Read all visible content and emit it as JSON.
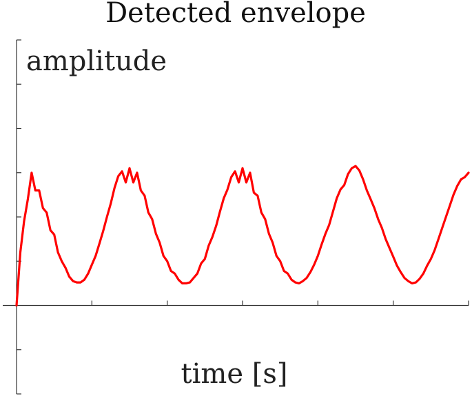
{
  "chart_data": {
    "type": "line",
    "title": "Detected envelope",
    "xlabel": "time [s]",
    "ylabel": "amplitude",
    "xlim": [
      0,
      6
    ],
    "ylim": [
      -2,
      6
    ],
    "x_ticks": [
      0,
      1,
      2,
      3,
      4,
      5,
      6
    ],
    "y_ticks": [
      -2,
      -1,
      0,
      1,
      2,
      3,
      4,
      5,
      6
    ],
    "tick_labels_shown": false,
    "grid": false,
    "colors": {
      "series": "#ff0000"
    },
    "series": [
      {
        "x": [
          0,
          0.05,
          0.1,
          0.15,
          0.2,
          0.25,
          0.3,
          0.35,
          0.4,
          0.45,
          0.5,
          0.55,
          0.6,
          0.65,
          0.7,
          0.75,
          0.8,
          0.85,
          0.9,
          0.95,
          1.0,
          1.05,
          1.1,
          1.15,
          1.2,
          1.25,
          1.3,
          1.35,
          1.4,
          1.45,
          1.5,
          1.55,
          1.6,
          1.65,
          1.7,
          1.75,
          1.8,
          1.85,
          1.9,
          1.95,
          2.0,
          2.05,
          2.1,
          2.15,
          2.2,
          2.25,
          2.3,
          2.35,
          2.4,
          2.45,
          2.5,
          2.55,
          2.6,
          2.65,
          2.7,
          2.75,
          2.8,
          2.85,
          2.9,
          2.95,
          3.0,
          3.05,
          3.1,
          3.15,
          3.2,
          3.25,
          3.3,
          3.35,
          3.4,
          3.45,
          3.5,
          3.55,
          3.6,
          3.65,
          3.7,
          3.75,
          3.8,
          3.85,
          3.9,
          3.95,
          4.0,
          4.05,
          4.1,
          4.15,
          4.2,
          4.25,
          4.3,
          4.35,
          4.4,
          4.45,
          4.5,
          4.55,
          4.6,
          4.65,
          4.7,
          4.75,
          4.8,
          4.85,
          4.9,
          4.95,
          5.0,
          5.05,
          5.1,
          5.15,
          5.2,
          5.25,
          5.3,
          5.35,
          5.4,
          5.45,
          5.5,
          5.55,
          5.6,
          5.65,
          5.7,
          5.75,
          5.8,
          5.85,
          5.9,
          5.95,
          6.0
        ],
        "y": [
          0.0,
          1.2,
          1.9,
          2.4,
          3.0,
          2.6,
          2.6,
          2.2,
          2.1,
          1.7,
          1.6,
          1.2,
          1.0,
          0.85,
          0.65,
          0.55,
          0.52,
          0.52,
          0.58,
          0.72,
          0.92,
          1.12,
          1.4,
          1.68,
          2.0,
          2.3,
          2.65,
          2.92,
          3.03,
          2.78,
          3.1,
          2.78,
          3.0,
          2.6,
          2.48,
          2.1,
          1.95,
          1.62,
          1.42,
          1.12,
          1.0,
          0.78,
          0.72,
          0.58,
          0.5,
          0.5,
          0.52,
          0.62,
          0.72,
          0.95,
          1.05,
          1.35,
          1.55,
          1.8,
          2.12,
          2.42,
          2.62,
          2.9,
          3.03,
          2.78,
          3.1,
          2.78,
          3.0,
          2.55,
          2.48,
          2.1,
          1.95,
          1.62,
          1.42,
          1.12,
          1.0,
          0.78,
          0.72,
          0.58,
          0.52,
          0.5,
          0.55,
          0.62,
          0.75,
          0.92,
          1.12,
          1.38,
          1.62,
          1.82,
          2.12,
          2.42,
          2.62,
          2.72,
          2.97,
          3.1,
          3.15,
          3.05,
          2.85,
          2.6,
          2.4,
          2.2,
          1.95,
          1.75,
          1.5,
          1.3,
          1.1,
          0.9,
          0.75,
          0.62,
          0.55,
          0.5,
          0.52,
          0.6,
          0.72,
          0.9,
          1.05,
          1.25,
          1.5,
          1.75,
          2.0,
          2.25,
          2.5,
          2.7,
          2.85,
          2.9,
          3.0
        ]
      }
    ]
  }
}
